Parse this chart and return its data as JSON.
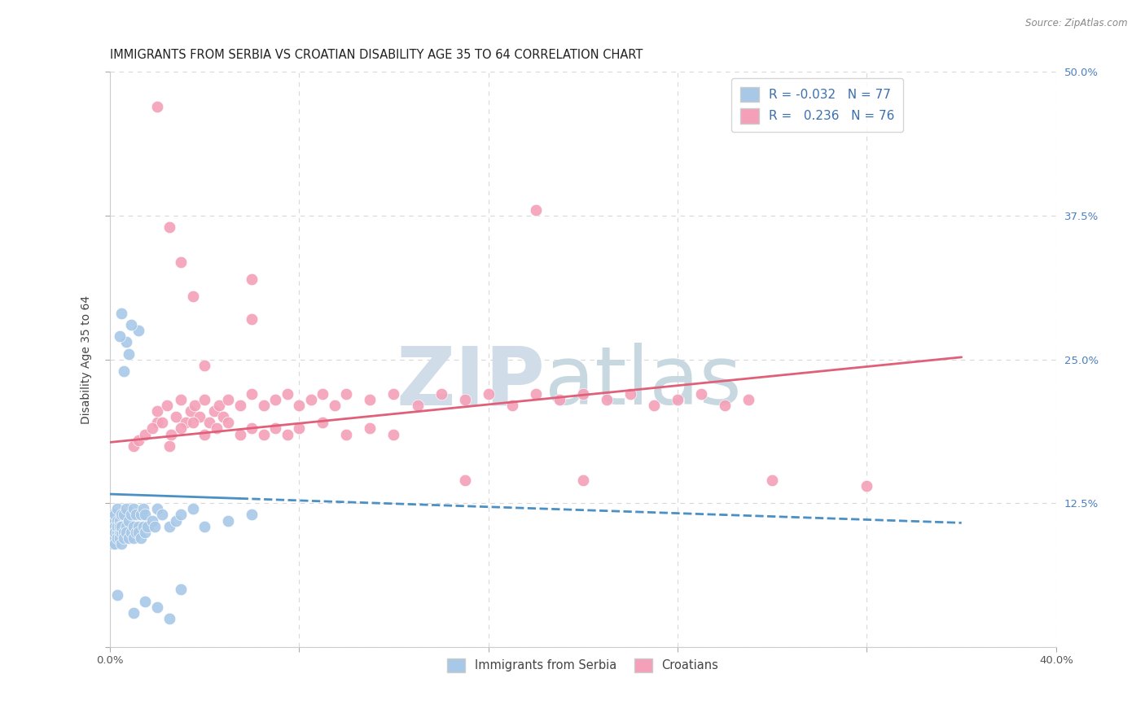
{
  "title": "IMMIGRANTS FROM SERBIA VS CROATIAN DISABILITY AGE 35 TO 64 CORRELATION CHART",
  "source": "Source: ZipAtlas.com",
  "ylabel": "Disability Age 35 to 64",
  "xlim": [
    0.0,
    0.4
  ],
  "ylim": [
    0.0,
    0.5
  ],
  "serbia_R": "-0.032",
  "serbia_N": "77",
  "croatia_R": "0.236",
  "croatia_N": "76",
  "serbia_color": "#a8c8e8",
  "croatia_color": "#f4a0b8",
  "serbia_line_color": "#4a90c4",
  "croatia_line_color": "#e0607a",
  "bg_color": "#ffffff",
  "grid_color": "#d8d8d8",
  "title_fontsize": 10.5,
  "axis_label_fontsize": 10,
  "tick_fontsize": 9.5,
  "serbia_trend_x0": 0.0,
  "serbia_trend_y0": 0.133,
  "serbia_trend_x1": 0.36,
  "serbia_trend_y1": 0.108,
  "croatia_trend_x0": 0.0,
  "croatia_trend_y0": 0.178,
  "croatia_trend_x1": 0.36,
  "croatia_trend_y1": 0.252,
  "serbia_x": [
    0.001,
    0.001,
    0.001,
    0.001,
    0.001,
    0.001,
    0.001,
    0.001,
    0.001,
    0.002,
    0.002,
    0.002,
    0.002,
    0.002,
    0.002,
    0.002,
    0.003,
    0.003,
    0.003,
    0.003,
    0.003,
    0.004,
    0.004,
    0.004,
    0.004,
    0.005,
    0.005,
    0.005,
    0.005,
    0.006,
    0.006,
    0.006,
    0.007,
    0.007,
    0.007,
    0.008,
    0.008,
    0.009,
    0.009,
    0.01,
    0.01,
    0.01,
    0.011,
    0.011,
    0.012,
    0.012,
    0.013,
    0.013,
    0.014,
    0.014,
    0.015,
    0.015,
    0.016,
    0.018,
    0.019,
    0.02,
    0.022,
    0.025,
    0.028,
    0.03,
    0.035,
    0.04,
    0.05,
    0.06,
    0.012,
    0.008,
    0.006,
    0.009,
    0.007,
    0.005,
    0.004,
    0.003,
    0.01,
    0.015,
    0.02,
    0.025,
    0.03
  ],
  "serbia_y": [
    0.105,
    0.11,
    0.095,
    0.1,
    0.115,
    0.09,
    0.105,
    0.1,
    0.115,
    0.1,
    0.095,
    0.11,
    0.105,
    0.1,
    0.115,
    0.09,
    0.1,
    0.11,
    0.095,
    0.105,
    0.12,
    0.1,
    0.095,
    0.11,
    0.105,
    0.1,
    0.115,
    0.09,
    0.105,
    0.1,
    0.115,
    0.095,
    0.105,
    0.1,
    0.12,
    0.095,
    0.11,
    0.1,
    0.115,
    0.095,
    0.105,
    0.12,
    0.1,
    0.115,
    0.105,
    0.1,
    0.115,
    0.095,
    0.105,
    0.12,
    0.1,
    0.115,
    0.105,
    0.11,
    0.105,
    0.12,
    0.115,
    0.105,
    0.11,
    0.115,
    0.12,
    0.105,
    0.11,
    0.115,
    0.275,
    0.255,
    0.24,
    0.28,
    0.265,
    0.29,
    0.27,
    0.045,
    0.03,
    0.04,
    0.035,
    0.025,
    0.05
  ],
  "croatia_x": [
    0.02,
    0.02,
    0.024,
    0.028,
    0.03,
    0.032,
    0.034,
    0.036,
    0.038,
    0.04,
    0.042,
    0.044,
    0.046,
    0.048,
    0.05,
    0.055,
    0.06,
    0.065,
    0.07,
    0.075,
    0.08,
    0.085,
    0.09,
    0.095,
    0.1,
    0.11,
    0.12,
    0.13,
    0.14,
    0.15,
    0.16,
    0.17,
    0.18,
    0.19,
    0.2,
    0.21,
    0.22,
    0.23,
    0.24,
    0.25,
    0.26,
    0.27,
    0.01,
    0.012,
    0.015,
    0.018,
    0.022,
    0.026,
    0.03,
    0.035,
    0.04,
    0.045,
    0.05,
    0.055,
    0.06,
    0.065,
    0.07,
    0.075,
    0.08,
    0.09,
    0.1,
    0.11,
    0.12,
    0.025,
    0.28,
    0.32,
    0.2,
    0.15,
    0.06,
    0.04,
    0.035,
    0.03,
    0.025,
    0.02,
    0.06,
    0.18
  ],
  "croatia_y": [
    0.195,
    0.205,
    0.21,
    0.2,
    0.215,
    0.195,
    0.205,
    0.21,
    0.2,
    0.215,
    0.195,
    0.205,
    0.21,
    0.2,
    0.215,
    0.21,
    0.22,
    0.21,
    0.215,
    0.22,
    0.21,
    0.215,
    0.22,
    0.21,
    0.22,
    0.215,
    0.22,
    0.21,
    0.22,
    0.215,
    0.22,
    0.21,
    0.22,
    0.215,
    0.22,
    0.215,
    0.22,
    0.21,
    0.215,
    0.22,
    0.21,
    0.215,
    0.175,
    0.18,
    0.185,
    0.19,
    0.195,
    0.185,
    0.19,
    0.195,
    0.185,
    0.19,
    0.195,
    0.185,
    0.19,
    0.185,
    0.19,
    0.185,
    0.19,
    0.195,
    0.185,
    0.19,
    0.185,
    0.175,
    0.145,
    0.14,
    0.145,
    0.145,
    0.285,
    0.245,
    0.305,
    0.335,
    0.365,
    0.47,
    0.32,
    0.38
  ]
}
